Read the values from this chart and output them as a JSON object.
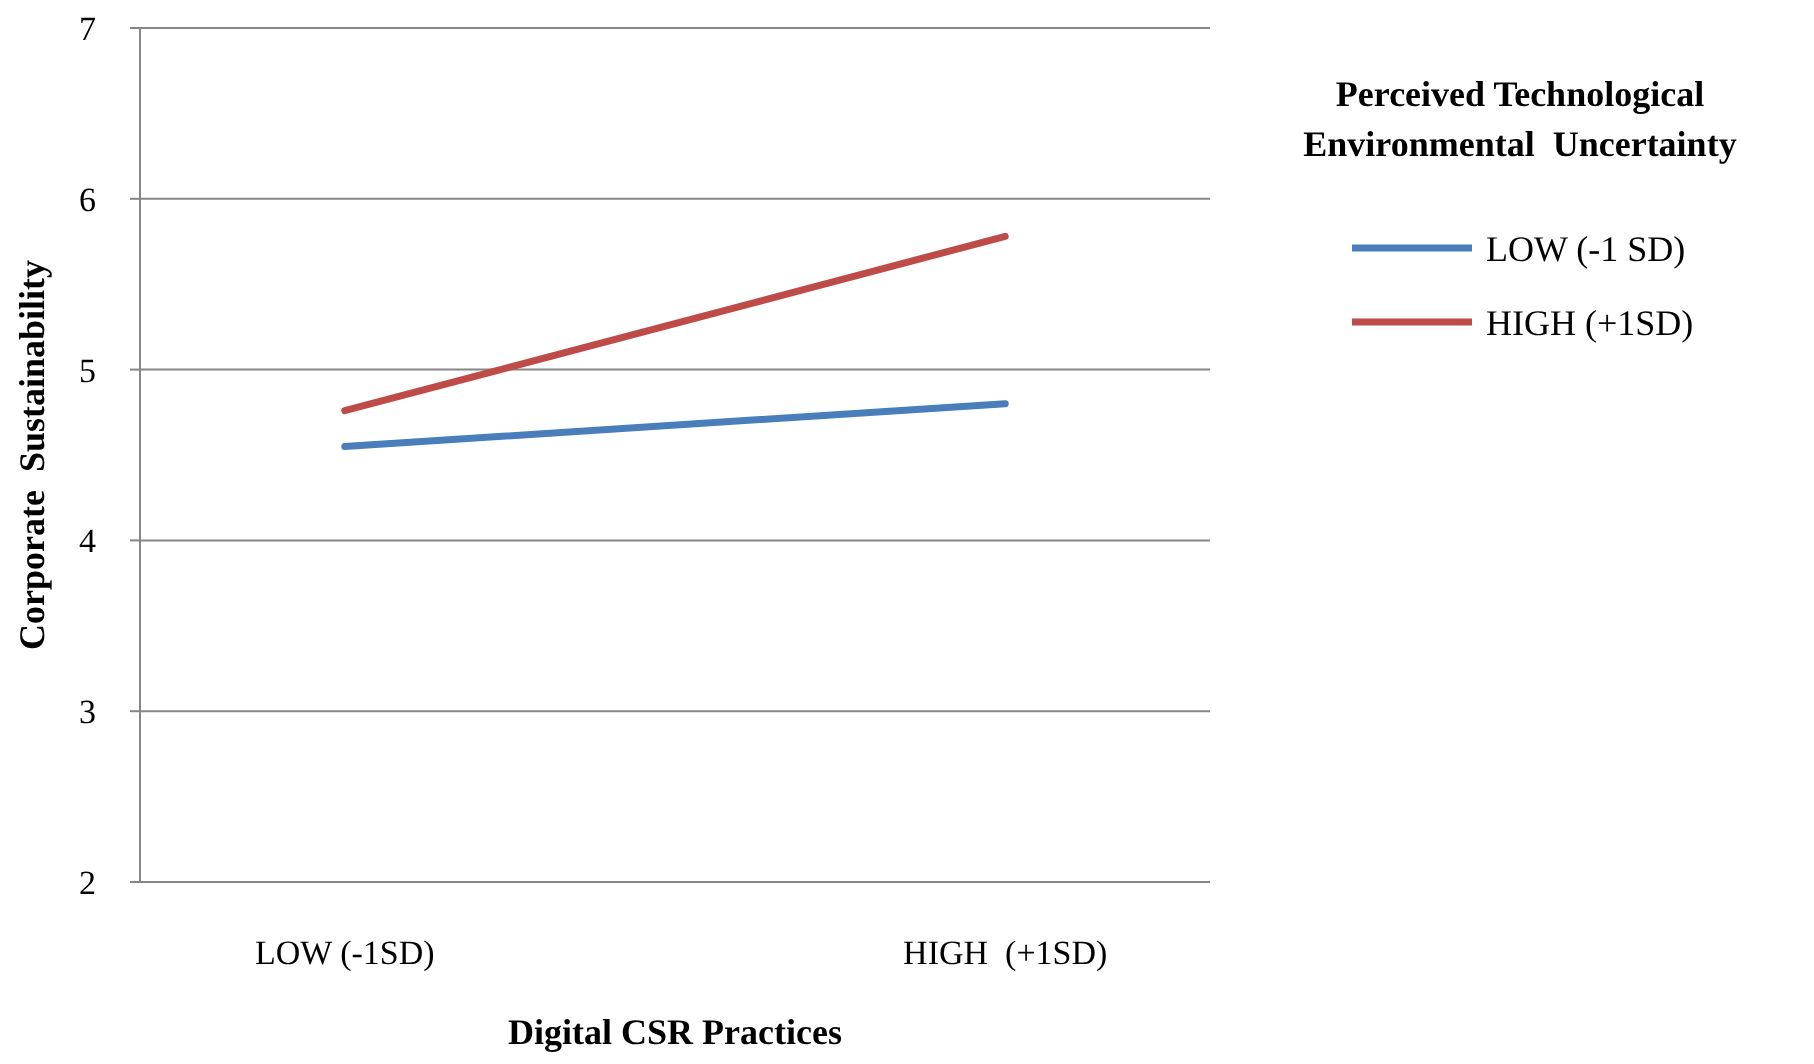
{
  "chart_data": {
    "type": "line",
    "xlabel": "Digital CSR Practices",
    "ylabel": "Corporate  Sustainability",
    "legend_title": "Perceived Technological Environmental  Uncertainty",
    "categories": [
      "LOW (-1SD)",
      "HIGH  (+1SD)"
    ],
    "series": [
      {
        "name": "LOW (-1 SD)",
        "color": "#4a7ebb",
        "values": [
          4.55,
          4.8
        ]
      },
      {
        "name": "HIGH (+1SD)",
        "color": "#be4b48",
        "values": [
          4.76,
          5.78
        ]
      }
    ],
    "ylim": [
      2,
      7
    ],
    "yticks": [
      2,
      3,
      4,
      5,
      6,
      7
    ],
    "grid": "y",
    "legend": "right",
    "marker": "none",
    "line_style": "solid"
  }
}
